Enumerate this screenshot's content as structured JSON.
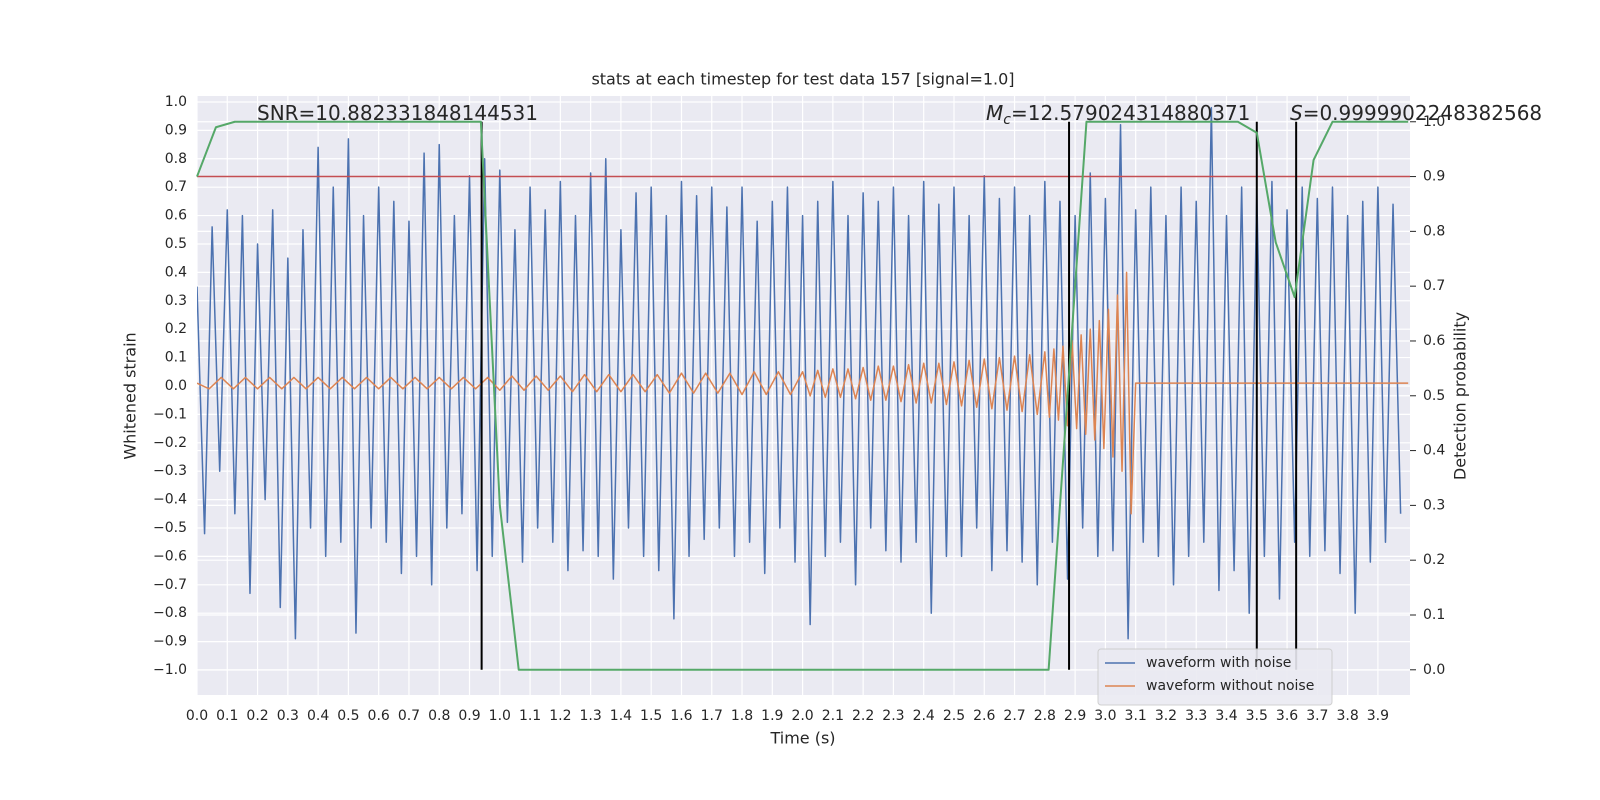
{
  "chart_data": {
    "type": "line",
    "title": "stats at each timestep for test data 157 [signal=1.0]",
    "xlabel": "Time (s)",
    "ylabel": "Whitened strain",
    "y2label": "Detection probability",
    "xlim": [
      0,
      4.006
    ],
    "ylim": [
      -1.088,
      1.021
    ],
    "y2lim": [
      -0.046,
      1.047
    ],
    "grid": true,
    "legend": "lower right",
    "xticks": [
      {
        "value": 0,
        "label": "0.0"
      },
      0.1,
      0.2,
      0.3,
      0.4,
      0.5,
      0.6,
      0.7,
      0.8,
      0.9,
      {
        "value": 1,
        "label": "1.0"
      },
      1.1,
      1.2,
      1.3,
      1.4,
      1.5,
      1.6,
      1.7,
      1.8,
      1.9,
      {
        "value": 2,
        "label": "2.0"
      },
      2.1,
      2.2,
      2.3,
      2.4,
      2.5,
      2.6,
      2.7,
      2.8,
      2.9,
      {
        "value": 3,
        "label": "3.0"
      },
      3.1,
      3.2,
      3.3,
      3.4,
      3.5,
      3.6,
      3.7,
      3.8,
      3.9
    ],
    "yticks": [
      {
        "value": -1,
        "label": "−1.0"
      },
      {
        "value": -0.9,
        "label": "−0.9"
      },
      {
        "value": -0.8,
        "label": "−0.8"
      },
      {
        "value": -0.7,
        "label": "−0.7"
      },
      {
        "value": -0.6,
        "label": "−0.6"
      },
      {
        "value": -0.5,
        "label": "−0.5"
      },
      {
        "value": -0.4,
        "label": "−0.4"
      },
      {
        "value": -0.3,
        "label": "−0.3"
      },
      {
        "value": -0.2,
        "label": "−0.2"
      },
      {
        "value": -0.1,
        "label": "−0.1"
      },
      {
        "value": 0,
        "label": "0.0"
      },
      0.1,
      0.2,
      0.3,
      0.4,
      0.5,
      0.6,
      0.7,
      0.8,
      0.9,
      {
        "value": 1,
        "label": "1.0"
      }
    ],
    "y2ticks": [
      {
        "value": 0,
        "label": "0.0"
      },
      0.1,
      0.2,
      0.3,
      0.4,
      0.5,
      0.6,
      0.7,
      0.8,
      0.9,
      {
        "value": 1,
        "label": "1.0"
      }
    ],
    "series": [
      {
        "name": "waveform with noise",
        "color": "#4c72b0",
        "x": [
          0,
          0.025,
          0.05,
          0.075,
          0.1,
          0.125,
          0.15,
          0.175,
          0.2,
          0.225,
          0.25,
          0.275,
          0.3,
          0.325,
          0.35,
          0.375,
          0.4,
          0.425,
          0.45,
          0.475,
          0.5,
          0.525,
          0.55,
          0.575,
          0.6,
          0.625,
          0.65,
          0.675,
          0.7,
          0.725,
          0.75,
          0.775,
          0.8,
          0.825,
          0.85,
          0.875,
          0.9,
          0.925,
          0.95,
          0.975,
          1,
          1.025,
          1.05,
          1.075,
          1.1,
          1.125,
          1.15,
          1.175,
          1.2,
          1.225,
          1.25,
          1.275,
          1.3,
          1.325,
          1.35,
          1.375,
          1.4,
          1.425,
          1.45,
          1.475,
          1.5,
          1.525,
          1.55,
          1.575,
          1.6,
          1.625,
          1.65,
          1.675,
          1.7,
          1.725,
          1.75,
          1.775,
          1.8,
          1.825,
          1.85,
          1.875,
          1.9,
          1.925,
          1.95,
          1.975,
          2,
          2.025,
          2.05,
          2.075,
          2.1,
          2.125,
          2.15,
          2.175,
          2.2,
          2.225,
          2.25,
          2.275,
          2.3,
          2.325,
          2.35,
          2.375,
          2.4,
          2.425,
          2.45,
          2.475,
          2.5,
          2.525,
          2.55,
          2.575,
          2.6,
          2.625,
          2.65,
          2.675,
          2.7,
          2.725,
          2.75,
          2.775,
          2.8,
          2.825,
          2.85,
          2.875,
          2.9,
          2.925,
          2.95,
          2.975,
          3,
          3.025,
          3.05,
          3.075,
          3.1,
          3.125,
          3.15,
          3.175,
          3.2,
          3.225,
          3.25,
          3.275,
          3.3,
          3.325,
          3.35,
          3.375,
          3.4,
          3.425,
          3.45,
          3.475,
          3.5,
          3.525,
          3.55,
          3.575,
          3.6,
          3.625,
          3.65,
          3.675,
          3.7,
          3.725,
          3.75,
          3.775,
          3.8,
          3.825,
          3.85,
          3.875,
          3.9,
          3.925,
          3.95,
          3.975
        ],
        "values": [
          0.35,
          -0.52,
          0.56,
          -0.3,
          0.62,
          -0.45,
          0.6,
          -0.73,
          0.5,
          -0.4,
          0.62,
          -0.78,
          0.45,
          -0.89,
          0.55,
          -0.5,
          0.84,
          -0.6,
          0.7,
          -0.55,
          0.87,
          -0.87,
          0.6,
          -0.5,
          0.7,
          -0.55,
          0.65,
          -0.66,
          0.58,
          -0.6,
          0.82,
          -0.7,
          0.85,
          -0.5,
          0.6,
          -0.45,
          0.74,
          -0.65,
          0.8,
          -0.6,
          0.76,
          -0.48,
          0.55,
          -0.62,
          0.7,
          -0.5,
          0.62,
          -0.55,
          0.72,
          -0.65,
          0.6,
          -0.58,
          0.75,
          -0.6,
          0.8,
          -0.68,
          0.55,
          -0.5,
          0.68,
          -0.6,
          0.7,
          -0.65,
          0.6,
          -0.82,
          0.72,
          -0.6,
          0.67,
          -0.54,
          0.7,
          -0.5,
          0.63,
          -0.6,
          0.7,
          -0.55,
          0.58,
          -0.66,
          0.65,
          -0.5,
          0.7,
          -0.62,
          0.6,
          -0.84,
          0.65,
          -0.6,
          0.72,
          -0.55,
          0.6,
          -0.7,
          0.68,
          -0.5,
          0.65,
          -0.58,
          0.7,
          -0.62,
          0.6,
          -0.55,
          0.72,
          -0.8,
          0.64,
          -0.6,
          0.7,
          -0.6,
          0.6,
          -0.5,
          0.74,
          -0.65,
          0.66,
          -0.58,
          0.7,
          -0.62,
          0.6,
          -0.7,
          0.72,
          -0.55,
          0.65,
          -0.68,
          0.6,
          -0.5,
          0.75,
          -0.6,
          0.66,
          -0.58,
          0.92,
          -0.89,
          0.62,
          -0.55,
          0.7,
          -0.6,
          0.6,
          -0.7,
          0.7,
          -0.6,
          0.65,
          -0.55,
          0.98,
          -0.72,
          0.6,
          -0.65,
          0.7,
          -0.8,
          0.68,
          -0.6,
          0.72,
          -0.75,
          0.62,
          -0.55,
          0.7,
          -0.6,
          0.66,
          -0.58,
          0.7,
          -0.66,
          0.6,
          -0.8,
          0.65,
          -0.62,
          0.7,
          -0.55,
          0.64,
          -0.45
        ]
      },
      {
        "name": "waveform without noise",
        "color": "#dd8452",
        "x": [
          0,
          0.04,
          0.08,
          0.12,
          0.16,
          0.2,
          0.24,
          0.28,
          0.32,
          0.36,
          0.4,
          0.44,
          0.48,
          0.52,
          0.56,
          0.6,
          0.64,
          0.68,
          0.72,
          0.76,
          0.8,
          0.84,
          0.88,
          0.92,
          0.96,
          1,
          1.04,
          1.08,
          1.12,
          1.16,
          1.2,
          1.24,
          1.28,
          1.32,
          1.36,
          1.4,
          1.44,
          1.48,
          1.52,
          1.56,
          1.6,
          1.64,
          1.68,
          1.72,
          1.76,
          1.8,
          1.84,
          1.88,
          1.92,
          1.96,
          2,
          2.025,
          2.05,
          2.075,
          2.1,
          2.125,
          2.15,
          2.175,
          2.2,
          2.225,
          2.25,
          2.275,
          2.3,
          2.325,
          2.35,
          2.375,
          2.4,
          2.425,
          2.45,
          2.475,
          2.5,
          2.525,
          2.55,
          2.575,
          2.6,
          2.625,
          2.65,
          2.675,
          2.7,
          2.725,
          2.75,
          2.775,
          2.8,
          2.815,
          2.83,
          2.845,
          2.86,
          2.875,
          2.89,
          2.905,
          2.92,
          2.935,
          2.95,
          2.965,
          2.98,
          2.995,
          3.01,
          3.025,
          3.04,
          3.055,
          3.07,
          3.085,
          3.1,
          4
        ],
        "values": [
          0.01,
          -0.01,
          0.03,
          -0.01,
          0.03,
          -0.01,
          0.03,
          -0.01,
          0.03,
          -0.01,
          0.03,
          -0.01,
          0.03,
          -0.01,
          0.03,
          -0.01,
          0.03,
          -0.01,
          0.03,
          -0.01,
          0.03,
          -0.01,
          0.03,
          -0.01,
          0.03,
          -0.015,
          0.035,
          -0.015,
          0.035,
          -0.015,
          0.035,
          -0.02,
          0.04,
          -0.02,
          0.04,
          -0.02,
          0.04,
          -0.02,
          0.04,
          -0.025,
          0.045,
          -0.025,
          0.045,
          -0.025,
          0.045,
          -0.03,
          0.05,
          -0.03,
          0.05,
          -0.03,
          0.05,
          -0.035,
          0.055,
          -0.04,
          0.06,
          -0.04,
          0.06,
          -0.045,
          0.065,
          -0.05,
          0.07,
          -0.05,
          0.07,
          -0.055,
          0.075,
          -0.06,
          0.08,
          -0.06,
          0.08,
          -0.065,
          0.085,
          -0.07,
          0.09,
          -0.075,
          0.095,
          -0.08,
          0.1,
          -0.085,
          0.105,
          -0.09,
          0.11,
          -0.1,
          0.12,
          -0.11,
          0.13,
          -0.12,
          0.14,
          -0.14,
          0.16,
          -0.15,
          0.18,
          -0.17,
          0.2,
          -0.19,
          0.23,
          -0.22,
          0.27,
          -0.25,
          0.32,
          -0.3,
          0.4,
          -0.45,
          0.01,
          0.01
        ]
      },
      {
        "color": "#55a868",
        "axis": "y2",
        "x": [
          0,
          0.0625,
          0.125,
          0.9375,
          1,
          1.0625,
          2.8125,
          2.9375,
          3.4375,
          3.5,
          3.5625,
          3.625,
          3.6875,
          3.75,
          4
        ],
        "values": [
          0.9,
          0.99,
          1,
          1,
          0.3,
          0,
          0,
          1,
          1,
          0.98,
          0.78,
          0.68,
          0.93,
          1,
          1
        ]
      }
    ],
    "hline": {
      "y": 0.9,
      "axis": "y2",
      "color": "#c44e52"
    },
    "vlines": {
      "x": [
        0.94,
        2.88,
        3.5,
        3.63
      ],
      "ymin": 0,
      "ymax": 1,
      "axis": "y2",
      "color": "#000000"
    },
    "annotations": [
      {
        "text": "SNR=10.882331848144531"
      },
      {
        "symbol": "M",
        "subscript": "c",
        "text": "=12.579024314880371"
      },
      {
        "symbol": "S",
        "text": "=0.9999902248382568"
      }
    ]
  }
}
